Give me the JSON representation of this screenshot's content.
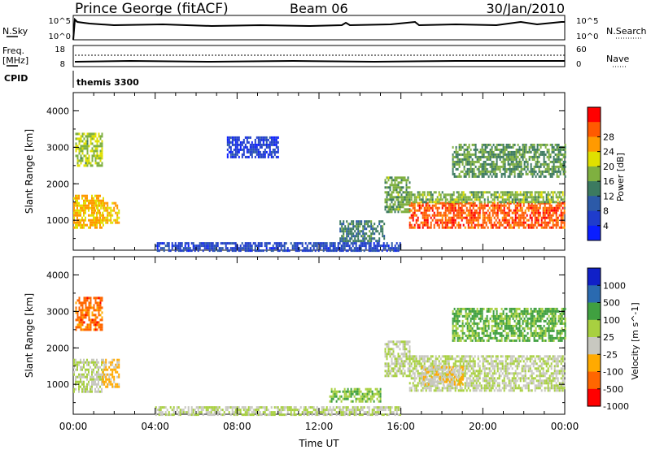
{
  "header": {
    "station": "Prince George (fitACF)",
    "beam": "Beam 06",
    "date": "30/Jan/2010"
  },
  "top_panels": {
    "nsky_label": "N.Sky",
    "nsky_ticks": [
      "10^5",
      "10^0"
    ],
    "nsearch_label": "N.Search",
    "nsearch_ticks": [
      "10^5",
      "10^0"
    ],
    "freq_label": "Freq.",
    "freq_unit": "[MHz]",
    "freq_ticks": [
      "18",
      "8"
    ],
    "nave_label": "Nave",
    "nave_ticks": [
      "60",
      "0"
    ],
    "cpid_label": "CPID",
    "cpid_value": "themis 3300"
  },
  "time_axis": {
    "title": "Time UT",
    "ticks": [
      "00:00",
      "04:00",
      "08:00",
      "12:00",
      "16:00",
      "20:00",
      "00:00"
    ]
  },
  "colors": {
    "power": [
      "#0a1eff",
      "#1f3ccc",
      "#2c5aa8",
      "#3c7a60",
      "#7fb040",
      "#e0e000",
      "#ff9a00",
      "#ff5a00",
      "#ff0000"
    ],
    "velocity": [
      "#ff0000",
      "#ff6600",
      "#ffaa00",
      "#c8c8c0",
      "#a8d040",
      "#40a040",
      "#2a6ab0",
      "#1020c8"
    ]
  },
  "chart_data": [
    {
      "type": "heatmap",
      "panel": "power",
      "ylabel": "Slant Range [km]",
      "y_ticks": [
        "1000",
        "2000",
        "3000",
        "4000"
      ],
      "ylim": [
        180,
        4500
      ],
      "xlabel": "Time UT",
      "xlim": [
        "00:00",
        "24:00"
      ],
      "colorbar_label": "Power [dB]",
      "colorbar_ticks": [
        "4",
        "8",
        "12",
        "16",
        "20",
        "24",
        "28"
      ],
      "scale": [
        0,
        32
      ],
      "regions": [
        {
          "t": [
            0.0,
            1.5
          ],
          "range_km": [
            800,
            1700
          ],
          "value": 22
        },
        {
          "t": [
            1.0,
            2.2
          ],
          "range_km": [
            900,
            1500
          ],
          "value": 21
        },
        {
          "t": [
            0.1,
            1.4
          ],
          "range_km": [
            2500,
            3400
          ],
          "value": 17
        },
        {
          "t": [
            13.0,
            15.2
          ],
          "range_km": [
            400,
            1000
          ],
          "value": 12
        },
        {
          "t": [
            15.2,
            16.4
          ],
          "range_km": [
            1200,
            2200
          ],
          "value": 15
        },
        {
          "t": [
            16.4,
            24.0
          ],
          "range_km": [
            800,
            1500
          ],
          "value": 27
        },
        {
          "t": [
            16.4,
            24.0
          ],
          "range_km": [
            1500,
            1800
          ],
          "value": 16
        },
        {
          "t": [
            4.0,
            16.0
          ],
          "range_km": [
            180,
            400
          ],
          "value": 6
        },
        {
          "t": [
            18.5,
            24.0
          ],
          "range_km": [
            2200,
            3100
          ],
          "value": 14
        },
        {
          "t": [
            7.5,
            10.0
          ],
          "range_km": [
            2700,
            3300
          ],
          "value": 5
        }
      ]
    },
    {
      "type": "heatmap",
      "panel": "velocity",
      "ylabel": "Slant Range [km]",
      "y_ticks": [
        "1000",
        "2000",
        "3000",
        "4000"
      ],
      "ylim": [
        180,
        4500
      ],
      "xlabel": "Time UT",
      "xlim": [
        "00:00",
        "24:00"
      ],
      "colorbar_label": "Velocity [m s^-1]",
      "colorbar_ticks": [
        "1000",
        "500",
        "100",
        "25",
        "-25",
        "-100",
        "-500",
        "-1000"
      ],
      "scale": [
        -1000,
        1000
      ],
      "regions": [
        {
          "t": [
            0.0,
            1.5
          ],
          "range_km": [
            800,
            1700
          ],
          "value": 0
        },
        {
          "t": [
            1.4,
            2.2
          ],
          "range_km": [
            900,
            1700
          ],
          "value": -300
        },
        {
          "t": [
            0.1,
            1.4
          ],
          "range_km": [
            2500,
            3400
          ],
          "value": -600
        },
        {
          "t": [
            12.5,
            15.0
          ],
          "range_km": [
            500,
            900
          ],
          "value": 200
        },
        {
          "t": [
            15.2,
            16.4
          ],
          "range_km": [
            1200,
            2200
          ],
          "value": 0
        },
        {
          "t": [
            16.4,
            24.0
          ],
          "range_km": [
            800,
            1800
          ],
          "value": 0
        },
        {
          "t": [
            17.0,
            19.0
          ],
          "range_km": [
            1000,
            1500
          ],
          "value": -200
        },
        {
          "t": [
            4.0,
            16.0
          ],
          "range_km": [
            180,
            400
          ],
          "value": 0
        },
        {
          "t": [
            18.5,
            24.0
          ],
          "range_km": [
            2200,
            3100
          ],
          "value": 300
        }
      ]
    }
  ]
}
